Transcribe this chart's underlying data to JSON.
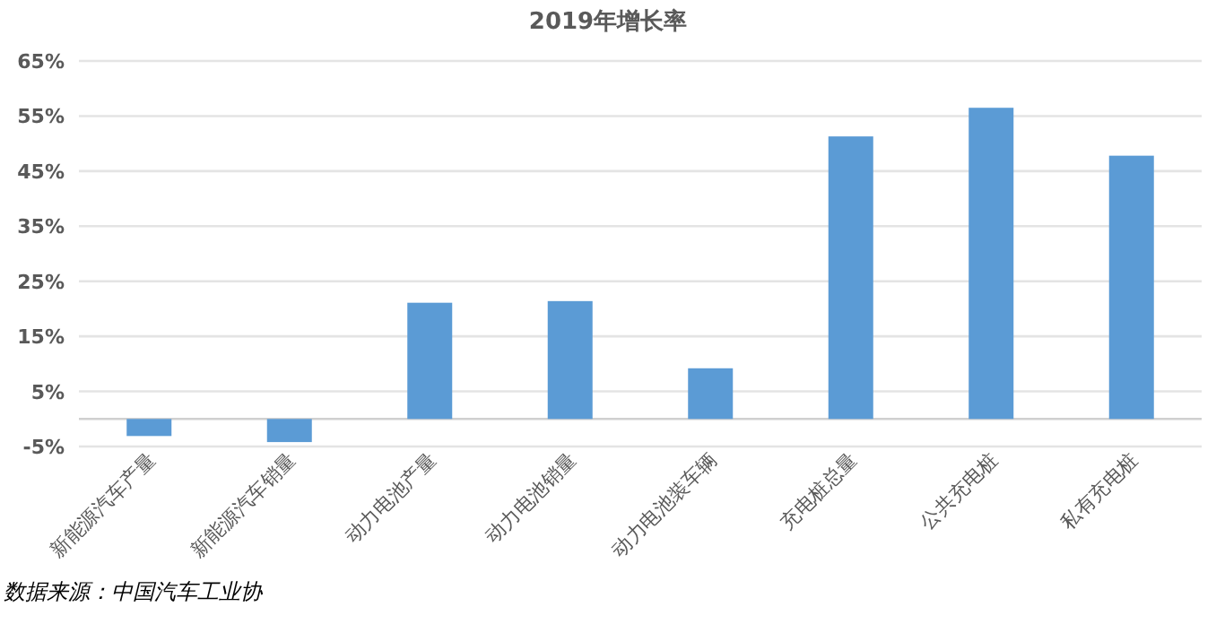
{
  "chart_data": {
    "type": "bar",
    "title": "2019年增长率",
    "categories": [
      "新能源汽车产量",
      "新能源汽车销量",
      "动力电池产量",
      "动力电池销量",
      "动力电池装车辆",
      "充电桩总量",
      "公共充电桩",
      "私有充电桩"
    ],
    "values": [
      -3.1,
      -4.2,
      21.1,
      21.4,
      9.2,
      51.3,
      56.5,
      47.8
    ],
    "color": "#5b9bd5",
    "ylim": [
      -5,
      65
    ],
    "yticks": [
      {
        "value": -5,
        "label": "-5%"
      },
      {
        "value": 0,
        "label": null
      },
      {
        "value": 5,
        "label": "5%"
      },
      {
        "value": 15,
        "label": "15%"
      },
      {
        "value": 25,
        "label": "25%"
      },
      {
        "value": 35,
        "label": "35%"
      },
      {
        "value": 45,
        "label": "45%"
      },
      {
        "value": 55,
        "label": "55%"
      },
      {
        "value": 65,
        "label": "65%"
      }
    ],
    "grid": "y",
    "annotations": [
      "数据来源：中国汽车工业协"
    ]
  }
}
